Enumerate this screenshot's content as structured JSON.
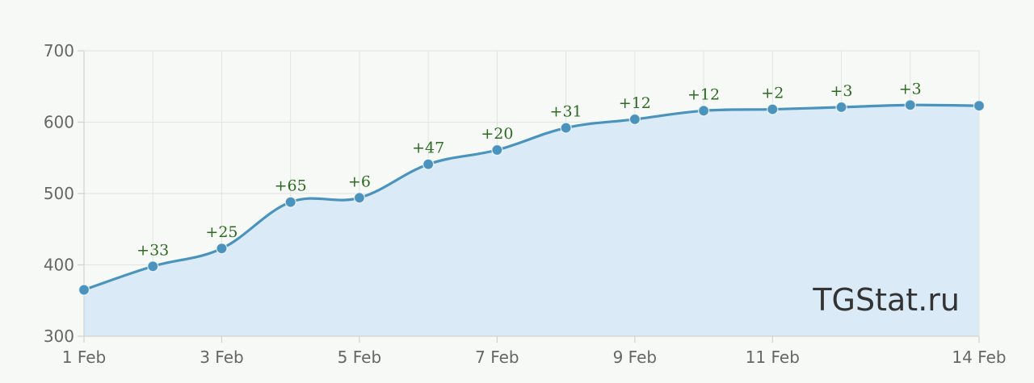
{
  "chart_data": {
    "type": "area",
    "x": [
      "1 Feb",
      "2 Feb",
      "3 Feb",
      "4 Feb",
      "5 Feb",
      "6 Feb",
      "7 Feb",
      "8 Feb",
      "9 Feb",
      "10 Feb",
      "11 Feb",
      "12 Feb",
      "13 Feb",
      "14 Feb"
    ],
    "values": [
      365,
      398,
      423,
      488,
      494,
      541,
      561,
      592,
      604,
      616,
      618,
      621,
      624,
      623
    ],
    "data_labels": [
      "",
      "+33",
      "+25",
      "+65",
      "+6",
      "+47",
      "+20",
      "+31",
      "+12",
      "+12",
      "+2",
      "+3",
      "+3",
      ""
    ],
    "x_tick_labels": [
      "1 Feb",
      "3 Feb",
      "5 Feb",
      "7 Feb",
      "9 Feb",
      "11 Feb",
      "14 Feb"
    ],
    "x_tick_indices": [
      0,
      2,
      4,
      6,
      8,
      10,
      13
    ],
    "y_ticks": [
      300,
      400,
      500,
      600,
      700
    ],
    "ylim": [
      300,
      700
    ],
    "grid": true,
    "colors": {
      "line": "#4a93bd",
      "fill": "#dbeaf7",
      "label": "#2e6b22"
    }
  },
  "watermark": "TGStat.ru"
}
